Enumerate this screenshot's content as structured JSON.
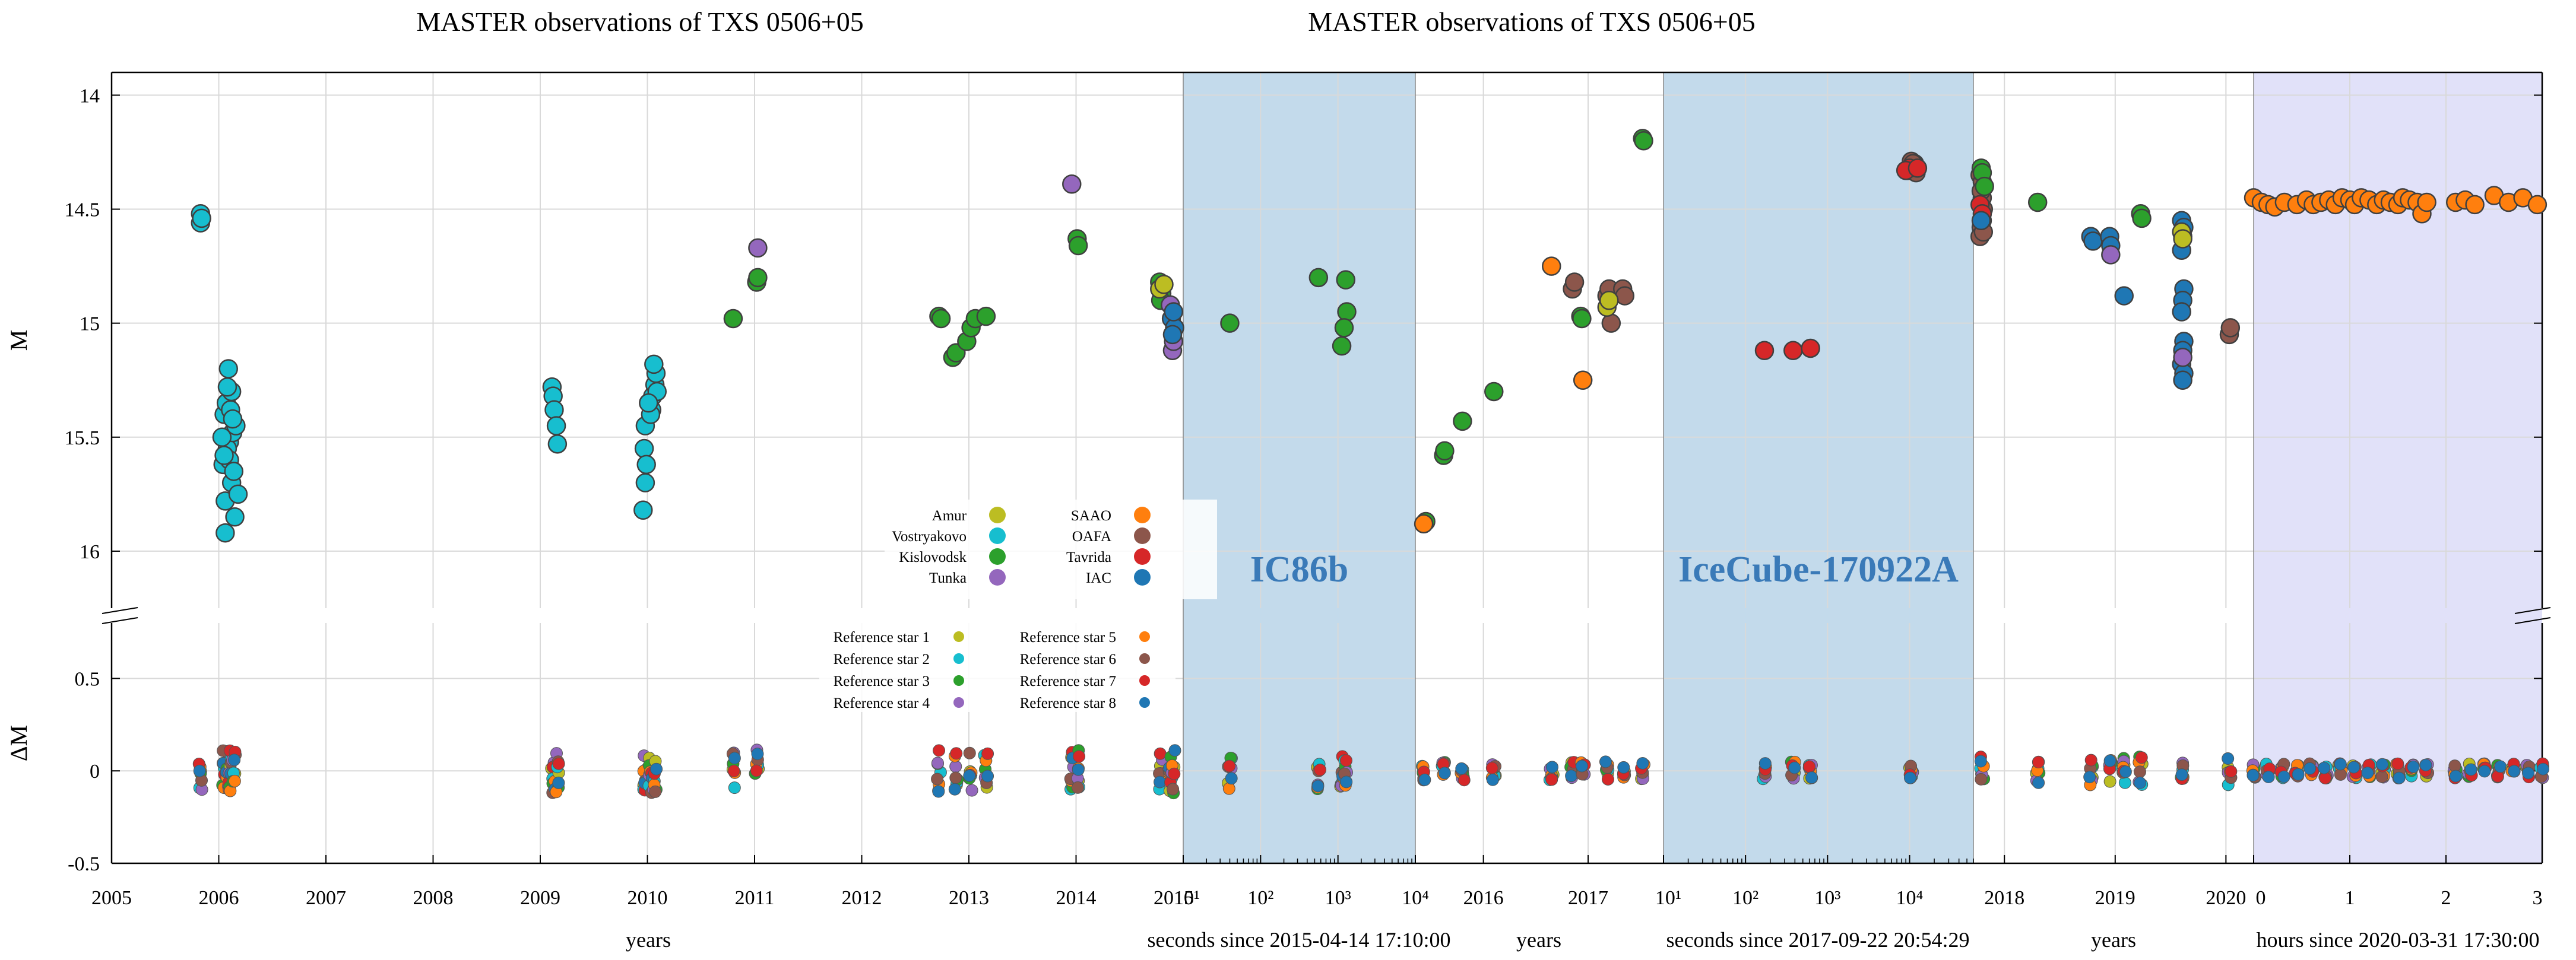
{
  "colors": {
    "Amur": "#bcbd22",
    "Vostryakovo": "#17becf",
    "Kislovodsk": "#2ca02c",
    "Tunka": "#9467bd",
    "SAAO": "#ff7f0e",
    "OAFA": "#8c564b",
    "Tavrida": "#d62728",
    "IAC": "#1f77b4",
    "band_blue": "#b8d4e8",
    "band_lavender": "#dcdcf8"
  },
  "chart_data": {
    "type": "scatter",
    "titles": [
      "MASTER observations of TXS 0506+05",
      "MASTER observations of TXS 0506+05"
    ],
    "ylabel_top": "M",
    "ylabel_bottom": "ΔM",
    "ylim_top": [
      16.25,
      13.9
    ],
    "ylim_bottom": [
      -0.5,
      0.8
    ],
    "yticks_top": [
      "14",
      "14.5",
      "15",
      "15.5",
      "16"
    ],
    "yticks_bottom": [
      "0.5",
      "0",
      "-0.5"
    ],
    "panels": [
      {
        "name": "years-1",
        "xlabel": "years",
        "xlim": [
          2005,
          2015
        ],
        "ticks": [
          "2005",
          "2006",
          "2007",
          "2008",
          "2009",
          "2010",
          "2011",
          "2012",
          "2013",
          "2014",
          "2015"
        ]
      },
      {
        "name": "IC86b",
        "xlabel": "seconds since 2015-04-14 17:10:00",
        "scale": "log",
        "xlim": [
          10,
          10000
        ],
        "ticks": [
          "10¹",
          "10²",
          "10³",
          "10⁴"
        ]
      },
      {
        "name": "years-2",
        "xlabel": "years",
        "xlim": [
          2015.35,
          2017.72
        ],
        "ticks": [
          "2016",
          "2017"
        ]
      },
      {
        "name": "IceCube",
        "xlabel": "seconds since 2017-09-22 20:54:29",
        "scale": "log",
        "xlim": [
          10,
          60000
        ],
        "ticks": [
          "10¹",
          "10²",
          "10³",
          "10⁴"
        ]
      },
      {
        "name": "years-3",
        "xlabel": "years",
        "xlim": [
          2017.72,
          2020.25
        ],
        "ticks": [
          "2018",
          "2019",
          "2020"
        ]
      },
      {
        "name": "hours",
        "xlabel": "hours since 2020-03-31 17:30:00",
        "xlim": [
          0,
          3
        ],
        "ticks": [
          "0",
          "1",
          "2",
          "3"
        ]
      }
    ],
    "bands": [
      {
        "panel": "IC86b",
        "label": "IC86b",
        "color": "band_blue"
      },
      {
        "panel": "IceCube",
        "label": "IceCube-170922A",
        "color": "band_blue"
      },
      {
        "panel": "hours",
        "label": "",
        "color": "band_lavender"
      }
    ],
    "legend_observatories": [
      "Amur",
      "Vostryakovo",
      "Kislovodsk",
      "Tunka",
      "SAAO",
      "OAFA",
      "Tavrida",
      "IAC"
    ],
    "legend_refstars": [
      {
        "label": "Reference star 1",
        "color": "Amur"
      },
      {
        "label": "Reference star 2",
        "color": "Vostryakovo"
      },
      {
        "label": "Reference star 3",
        "color": "Kislovodsk"
      },
      {
        "label": "Reference star 4",
        "color": "Tunka"
      },
      {
        "label": "Reference star 5",
        "color": "SAAO"
      },
      {
        "label": "Reference star 6",
        "color": "OAFA"
      },
      {
        "label": "Reference star 7",
        "color": "Tavrida"
      },
      {
        "label": "Reference star 8",
        "color": "IAC"
      }
    ],
    "series": [
      {
        "panel": "years-1",
        "obs": "Vostryakovo",
        "points": [
          [
            2005.83,
            14.52
          ],
          [
            2005.83,
            14.56
          ],
          [
            2005.84,
            14.54
          ],
          [
            2006.05,
            15.4
          ],
          [
            2006.07,
            15.35
          ],
          [
            2006.1,
            15.52
          ],
          [
            2006.12,
            15.7
          ],
          [
            2006.08,
            15.55
          ],
          [
            2006.04,
            15.62
          ],
          [
            2006.06,
            15.78
          ],
          [
            2006.13,
            15.48
          ],
          [
            2006.15,
            15.85
          ],
          [
            2006.06,
            15.92
          ],
          [
            2006.1,
            15.6
          ],
          [
            2006.16,
            15.45
          ],
          [
            2006.12,
            15.3
          ],
          [
            2006.09,
            15.2
          ],
          [
            2006.14,
            15.65
          ],
          [
            2006.18,
            15.75
          ],
          [
            2006.05,
            15.58
          ],
          [
            2006.11,
            15.38
          ],
          [
            2006.08,
            15.28
          ],
          [
            2006.13,
            15.42
          ],
          [
            2006.03,
            15.5
          ],
          [
            2009.11,
            15.28
          ],
          [
            2009.12,
            15.32
          ],
          [
            2009.13,
            15.38
          ],
          [
            2009.15,
            15.45
          ],
          [
            2009.16,
            15.53
          ],
          [
            2009.98,
            15.45
          ],
          [
            2009.97,
            15.55
          ],
          [
            2009.99,
            15.62
          ],
          [
            2009.98,
            15.7
          ],
          [
            2009.96,
            15.82
          ],
          [
            2010.05,
            15.32
          ],
          [
            2010.07,
            15.27
          ],
          [
            2010.08,
            15.22
          ],
          [
            2010.06,
            15.18
          ],
          [
            2010.09,
            15.3
          ],
          [
            2010.04,
            15.38
          ],
          [
            2010.03,
            15.4
          ],
          [
            2010.01,
            15.35
          ]
        ]
      },
      {
        "panel": "years-1",
        "obs": "Kislovodsk",
        "points": [
          [
            2010.8,
            14.98
          ],
          [
            2011.02,
            14.82
          ],
          [
            2011.03,
            14.8
          ],
          [
            2012.72,
            14.97
          ],
          [
            2012.74,
            14.98
          ],
          [
            2012.85,
            15.15
          ],
          [
            2012.88,
            15.13
          ],
          [
            2012.98,
            15.08
          ],
          [
            2013.02,
            15.02
          ],
          [
            2013.06,
            14.98
          ],
          [
            2013.16,
            14.97
          ],
          [
            2014.01,
            14.63
          ],
          [
            2014.02,
            14.66
          ],
          [
            2014.78,
            14.82
          ],
          [
            2014.8,
            14.87
          ],
          [
            2014.79,
            14.9
          ]
        ]
      },
      {
        "panel": "years-1",
        "obs": "Tunka",
        "points": [
          [
            2011.03,
            14.67
          ],
          [
            2013.96,
            14.39
          ],
          [
            2014.88,
            14.92
          ],
          [
            2014.9,
            15.12
          ],
          [
            2014.91,
            15.08
          ]
        ]
      },
      {
        "panel": "years-1",
        "obs": "IAC",
        "points": [
          [
            2014.89,
            14.98
          ],
          [
            2014.92,
            15.02
          ],
          [
            2014.9,
            15.05
          ],
          [
            2014.91,
            14.95
          ]
        ]
      },
      {
        "panel": "years-1",
        "obs": "Amur",
        "points": [
          [
            2014.78,
            14.85
          ],
          [
            2014.82,
            14.83
          ]
        ]
      },
      {
        "panel": "IC86b",
        "obs": "Kislovodsk",
        "points": [
          [
            40,
            15.0
          ],
          [
            560,
            14.8
          ],
          [
            1120,
            15.1
          ],
          [
            1300,
            14.95
          ],
          [
            1260,
            14.81
          ],
          [
            1200,
            15.02
          ]
        ]
      },
      {
        "panel": "years-2",
        "obs": "Kislovodsk",
        "points": [
          [
            2015.45,
            15.87
          ],
          [
            2015.62,
            15.58
          ],
          [
            2015.63,
            15.56
          ],
          [
            2015.8,
            15.43
          ],
          [
            2016.1,
            15.3
          ],
          [
            2016.93,
            14.97
          ],
          [
            2016.94,
            14.98
          ],
          [
            2017.52,
            14.19
          ],
          [
            2017.53,
            14.2
          ]
        ]
      },
      {
        "panel": "years-2",
        "obs": "SAAO",
        "points": [
          [
            2015.43,
            15.88
          ],
          [
            2016.65,
            14.75
          ],
          [
            2016.95,
            15.25
          ]
        ]
      },
      {
        "panel": "years-2",
        "obs": "OAFA",
        "points": [
          [
            2016.85,
            14.85
          ],
          [
            2016.87,
            14.82
          ],
          [
            2017.18,
            14.88
          ],
          [
            2017.2,
            14.85
          ],
          [
            2017.22,
            15.0
          ],
          [
            2017.33,
            14.85
          ],
          [
            2017.35,
            14.88
          ]
        ]
      },
      {
        "panel": "years-2",
        "obs": "Amur",
        "points": [
          [
            2017.18,
            14.93
          ],
          [
            2017.2,
            14.9
          ]
        ]
      },
      {
        "panel": "IceCube",
        "obs": "Tavrida",
        "points": [
          [
            170,
            15.12
          ],
          [
            380,
            15.12
          ],
          [
            620,
            15.11
          ]
        ]
      },
      {
        "panel": "IceCube",
        "obs": "OAFA",
        "points": [
          [
            9500,
            14.33
          ],
          [
            10500,
            14.29
          ],
          [
            11500,
            14.3
          ],
          [
            12000,
            14.34
          ],
          [
            11000,
            14.3
          ]
        ]
      },
      {
        "panel": "IceCube",
        "obs": "Tavrida",
        "points": [
          [
            10000,
            14.32
          ],
          [
            9000,
            14.33
          ],
          [
            12500,
            14.32
          ]
        ]
      },
      {
        "panel": "years-3",
        "obs": "OAFA",
        "points": [
          [
            2017.78,
            14.35
          ],
          [
            2017.8,
            14.45
          ],
          [
            2017.81,
            14.5
          ],
          [
            2017.79,
            14.58
          ],
          [
            2017.78,
            14.62
          ],
          [
            2017.8,
            14.38
          ],
          [
            2017.79,
            14.42
          ],
          [
            2017.8,
            14.55
          ],
          [
            2017.81,
            14.6
          ],
          [
            2020.03,
            15.05
          ],
          [
            2020.04,
            15.02
          ]
        ]
      },
      {
        "panel": "years-3",
        "obs": "Kislovodsk",
        "points": [
          [
            2017.79,
            14.32
          ],
          [
            2017.8,
            14.34
          ],
          [
            2017.82,
            14.4
          ],
          [
            2018.3,
            14.47
          ],
          [
            2019.23,
            14.52
          ],
          [
            2019.24,
            14.54
          ]
        ]
      },
      {
        "panel": "years-3",
        "obs": "Tavrida",
        "points": [
          [
            2017.78,
            14.48
          ],
          [
            2017.8,
            14.52
          ]
        ]
      },
      {
        "panel": "years-3",
        "obs": "IAC",
        "points": [
          [
            2017.79,
            14.55
          ],
          [
            2018.78,
            14.62
          ],
          [
            2018.8,
            14.64
          ],
          [
            2018.95,
            14.62
          ],
          [
            2018.96,
            14.66
          ],
          [
            2019.08,
            14.88
          ],
          [
            2019.6,
            14.55
          ],
          [
            2019.62,
            14.58
          ],
          [
            2019.61,
            14.62
          ],
          [
            2019.6,
            14.68
          ],
          [
            2019.62,
            14.85
          ],
          [
            2019.61,
            14.9
          ],
          [
            2019.6,
            14.95
          ],
          [
            2019.62,
            15.08
          ],
          [
            2019.61,
            15.12
          ],
          [
            2019.6,
            15.18
          ],
          [
            2019.62,
            15.22
          ],
          [
            2019.61,
            15.25
          ]
        ]
      },
      {
        "panel": "years-3",
        "obs": "Tunka",
        "points": [
          [
            2018.96,
            14.7
          ],
          [
            2019.61,
            15.15
          ]
        ]
      },
      {
        "panel": "years-3",
        "obs": "Amur",
        "points": [
          [
            2019.6,
            14.6
          ],
          [
            2019.61,
            14.63
          ]
        ]
      },
      {
        "panel": "hours",
        "obs": "SAAO",
        "points": [
          [
            0.0,
            14.45
          ],
          [
            0.08,
            14.47
          ],
          [
            0.15,
            14.48
          ],
          [
            0.22,
            14.49
          ],
          [
            0.32,
            14.47
          ],
          [
            0.45,
            14.48
          ],
          [
            0.55,
            14.46
          ],
          [
            0.62,
            14.48
          ],
          [
            0.7,
            14.47
          ],
          [
            0.78,
            14.46
          ],
          [
            0.85,
            14.48
          ],
          [
            0.92,
            14.45
          ],
          [
            1.0,
            14.46
          ],
          [
            1.05,
            14.48
          ],
          [
            1.12,
            14.45
          ],
          [
            1.2,
            14.46
          ],
          [
            1.28,
            14.48
          ],
          [
            1.35,
            14.46
          ],
          [
            1.42,
            14.47
          ],
          [
            1.5,
            14.48
          ],
          [
            1.55,
            14.45
          ],
          [
            1.62,
            14.46
          ],
          [
            1.7,
            14.47
          ],
          [
            1.75,
            14.52
          ],
          [
            1.8,
            14.47
          ],
          [
            2.1,
            14.47
          ],
          [
            2.2,
            14.46
          ],
          [
            2.3,
            14.48
          ],
          [
            2.5,
            14.44
          ],
          [
            2.65,
            14.47
          ],
          [
            2.8,
            14.45
          ],
          [
            2.95,
            14.48
          ]
        ]
      }
    ],
    "residual_groups": [
      {
        "panel": "years-1",
        "x": [
          2005.83,
          2006.05,
          2006.08,
          2006.11,
          2006.14,
          2009.12,
          2009.16,
          2009.98,
          2010.03,
          2010.07,
          2010.8,
          2011.02,
          2012.72,
          2012.88,
          2013.02,
          2013.16,
          2013.96,
          2014.02,
          2014.79,
          2014.88,
          2014.91
        ],
        "spread": 0.12
      },
      {
        "panel": "IC86b",
        "x": [
          40,
          560,
          1120,
          1250
        ],
        "spread": 0.1
      },
      {
        "panel": "years-2",
        "x": [
          2015.43,
          2015.62,
          2015.8,
          2016.1,
          2016.65,
          2016.85,
          2016.95,
          2017.18,
          2017.35,
          2017.52
        ],
        "spread": 0.05
      },
      {
        "panel": "IceCube",
        "x": [
          170,
          380,
          620,
          10500
        ],
        "spread": 0.05
      },
      {
        "panel": "years-3",
        "x": [
          2017.8,
          2018.3,
          2018.78,
          2018.96,
          2019.08,
          2019.23,
          2019.61,
          2020.03
        ],
        "spread": 0.08
      },
      {
        "panel": "hours",
        "x": [
          0.0,
          0.15,
          0.3,
          0.45,
          0.6,
          0.75,
          0.9,
          1.05,
          1.2,
          1.35,
          1.5,
          1.65,
          1.8,
          2.1,
          2.25,
          2.4,
          2.55,
          2.7,
          2.85,
          3.0
        ],
        "spread": 0.04
      }
    ]
  }
}
